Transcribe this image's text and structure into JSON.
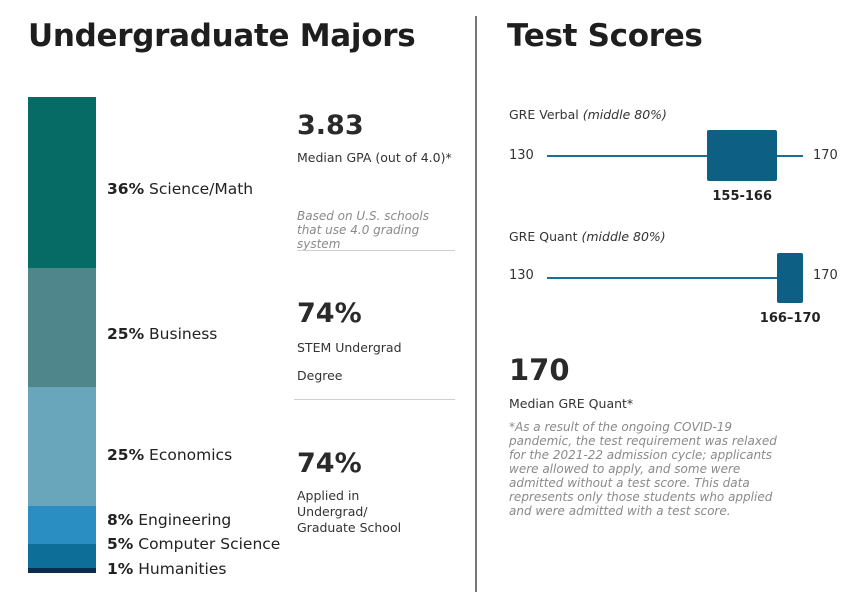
{
  "majors": {
    "title": "Undergraduate Majors",
    "chart_data": {
      "type": "bar",
      "title": "Undergraduate Majors",
      "categories": [
        "Science/Math",
        "Business",
        "Economics",
        "Engineering",
        "Computer Science",
        "Humanities"
      ],
      "values": [
        36,
        25,
        25,
        8,
        5,
        1
      ],
      "unit": "%",
      "colors": [
        "#066b64",
        "#4e868b",
        "#6aa6bb",
        "#2a8ec2",
        "#0d6e97",
        "#0c2c4e"
      ]
    },
    "labels": [
      {
        "pct": "36%",
        "name": " Science/Math"
      },
      {
        "pct": "25%",
        "name": " Business"
      },
      {
        "pct": "25%",
        "name": " Economics"
      },
      {
        "pct": "8%",
        "name": " Engineering"
      },
      {
        "pct": "5%",
        "name": " Computer Science"
      },
      {
        "pct": "1%",
        "name": " Humanities"
      }
    ]
  },
  "stats": {
    "gpa_value": "3.83",
    "gpa_desc": "Median GPA (out of 4.0)*",
    "gpa_note": "Based on U.S. schools that use 4.0 grading system",
    "stem_value": "74%",
    "stem_desc": "STEM Undergrad Degree",
    "applied_value": "74%",
    "applied_desc": "Applied in Undergrad/ Graduate School"
  },
  "test_scores": {
    "title": "Test Scores",
    "verbal": {
      "label": "GRE Verbal",
      "qualifier": "(middle 80%)",
      "min_label": "130",
      "max_label": "170",
      "range_label": "155-166"
    },
    "quant": {
      "label": "GRE Quant",
      "qualifier": "(middle 80%)",
      "min_label": "130",
      "max_label": "170",
      "range_label": "166–170"
    },
    "median_value": "170",
    "median_label": "Median GRE Quant*",
    "footnote": "*As a result of the ongoing COVID-19 pandemic, the test requirement was relaxed for the 2021-22 admission cycle; applicants were allowed to apply, and some were admitted without a test score. This data represents only those students who applied and were admitted with a test score."
  },
  "chart_data": {
    "type": "bar",
    "title": "Test Scores",
    "categories": [
      "GRE Verbal",
      "GRE Quant"
    ],
    "axis_range": [
      130,
      170
    ],
    "series": [
      {
        "name": "middle 80%",
        "values": [
          [
            155,
            166
          ],
          [
            166,
            170
          ]
        ]
      }
    ]
  }
}
